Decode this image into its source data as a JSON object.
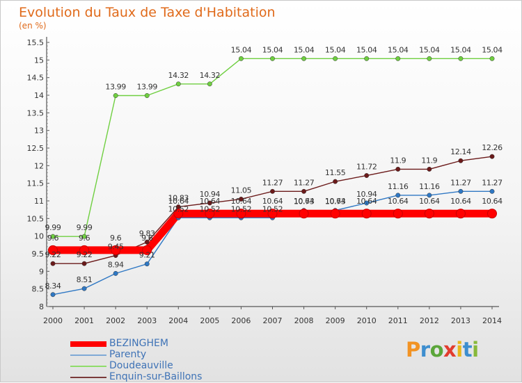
{
  "title": "Evolution du Taux de Taxe d'Habitation",
  "subtitle": "(en %)",
  "logo_text": "Proxiti",
  "chart_data": {
    "type": "line",
    "title": "Evolution du Taux de Taxe d'Habitation",
    "subtitle": "(en %)",
    "xlabel": "",
    "ylabel": "",
    "ylim": [
      8,
      15.5
    ],
    "ytick_step": 0.5,
    "x": [
      "2000",
      "2001",
      "2002",
      "2003",
      "2004",
      "2005",
      "2006",
      "2007",
      "2008",
      "2009",
      "2010",
      "2011",
      "2012",
      "2013",
      "2014"
    ],
    "grid": false,
    "legend_position": "bottom-left",
    "series": [
      {
        "name": "Enquin-sur-Baillons",
        "color": "#6b1a1a",
        "values": [
          9.22,
          9.22,
          9.45,
          9.83,
          10.83,
          10.94,
          11.05,
          11.27,
          11.27,
          11.55,
          11.72,
          11.9,
          11.9,
          12.14,
          12.26
        ],
        "labels": [
          "9.22",
          "9.22",
          "9.45",
          "9.83",
          "10.83",
          "10.94",
          "11.05",
          "11.27",
          "11.27",
          "11.55",
          "11.72",
          "11.9",
          "11.9",
          "12.14",
          "12.26"
        ]
      },
      {
        "name": "Doudeauville",
        "color": "#6fcf40",
        "values": [
          9.99,
          9.99,
          13.99,
          13.99,
          14.32,
          14.32,
          15.04,
          15.04,
          15.04,
          15.04,
          15.04,
          15.04,
          15.04,
          15.04,
          15.04
        ],
        "labels": [
          "9.99",
          "9.99",
          "13.99",
          "13.99",
          "14.32",
          "14.32",
          "15.04",
          "15.04",
          "15.04",
          "15.04",
          "15.04",
          "15.04",
          "15.04",
          "15.04",
          "15.04"
        ]
      },
      {
        "name": "Parenty",
        "color": "#2f78c4",
        "values": [
          8.34,
          8.51,
          8.94,
          9.21,
          10.52,
          10.52,
          10.52,
          10.52,
          10.73,
          10.73,
          10.94,
          11.16,
          11.16,
          11.27,
          11.27
        ],
        "labels": [
          "8.34",
          "8.51",
          "8.94",
          "9.21",
          "10.52",
          "10.52",
          "10.52",
          "10.52",
          "10.73",
          "10.73",
          "10.94",
          "11.16",
          "11.16",
          "11.27",
          "11.27"
        ]
      },
      {
        "name": "BEZINGHEM",
        "color": "#ff0000",
        "values": [
          9.6,
          9.6,
          9.6,
          9.6,
          10.64,
          10.64,
          10.64,
          10.64,
          10.64,
          10.64,
          10.64,
          10.64,
          10.64,
          10.64,
          10.64
        ],
        "labels": [
          "9.6",
          "9.6",
          "9.6",
          "9.6",
          "10.64",
          "10.64",
          "10.64",
          "10.64",
          "10.64",
          "10.64",
          "10.64",
          "10.64",
          "10.64",
          "10.64",
          "10.64"
        ]
      }
    ]
  },
  "legend": [
    {
      "name": "BEZINGHEM",
      "color": "#ff0000"
    },
    {
      "name": "Parenty",
      "color": "#7fa9d6"
    },
    {
      "name": "Doudeauville",
      "color": "#8fdc6a"
    },
    {
      "name": "Enquin-sur-Baillons",
      "color": "#7a3a3a"
    }
  ]
}
